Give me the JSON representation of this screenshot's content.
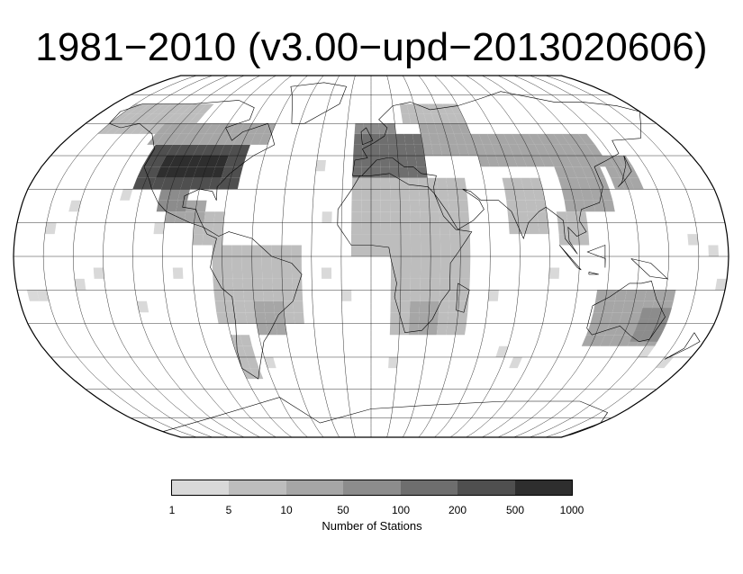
{
  "title": "1981−2010 (v3.00−upd−2013020606)",
  "legend": {
    "label": "Number of Stations",
    "ticks": [
      "1",
      "5",
      "10",
      "50",
      "100",
      "200",
      "500",
      "1000"
    ],
    "colors": [
      "#d9d9d9",
      "#bdbdbd",
      "#a6a6a6",
      "#8c8c8c",
      "#6e6e6e",
      "#4f4f4f",
      "#2e2e2e",
      "#000000"
    ]
  },
  "projection": "Robinson",
  "graticule_step_degrees": 15
}
